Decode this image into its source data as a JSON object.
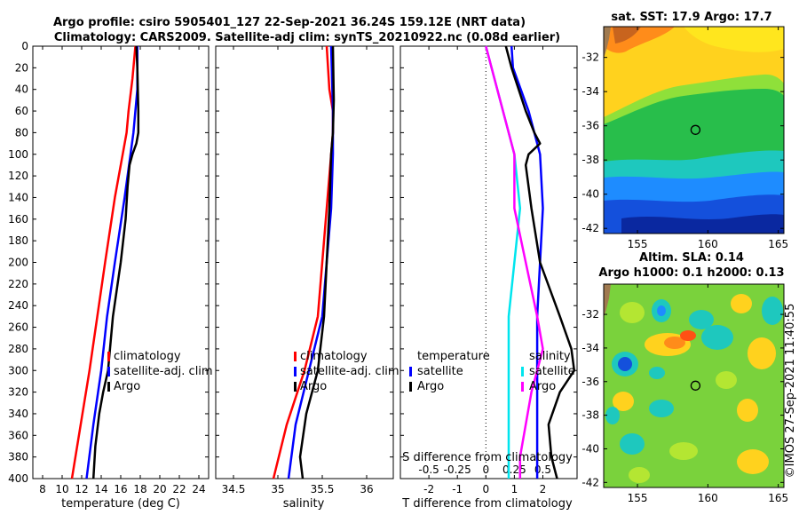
{
  "title_line1": "Argo profile: csiro 5905401_127 22-Sep-2021 36.24S 159.12E (NRT data)",
  "title_line2": "Climatology: CARS2009. Satellite-adj clim: synTS_20210922.nc (0.08d earlier)",
  "watermark": "©IMOS 27-Sep-2021 11:40:55",
  "colors": {
    "climatology": "#ff0000",
    "satellite": "#0000ff",
    "argo": "#000000",
    "cyan": "#00e5ee",
    "magenta": "#ff00ff"
  },
  "chart_data": [
    {
      "type": "line",
      "id": "temperature",
      "xlabel": "temperature (deg C)",
      "ylim": [
        0,
        400
      ],
      "xlim": [
        7,
        25
      ],
      "xticks": [
        8,
        10,
        12,
        14,
        16,
        18,
        20,
        22,
        24
      ],
      "yticks": [
        0,
        20,
        40,
        60,
        80,
        100,
        120,
        140,
        160,
        180,
        200,
        220,
        240,
        260,
        280,
        300,
        320,
        340,
        360,
        380,
        400
      ],
      "legend": [
        "climatology",
        "satellite-adj. clim",
        "Argo"
      ],
      "series": [
        {
          "name": "climatology",
          "color": "#ff0000",
          "depth": [
            0,
            10,
            30,
            60,
            80,
            100,
            140,
            200,
            250,
            300,
            350,
            400
          ],
          "values": [
            17.5,
            17.4,
            17.2,
            16.8,
            16.6,
            16.2,
            15.4,
            14.4,
            13.6,
            12.8,
            11.9,
            11.0
          ]
        },
        {
          "name": "satellite-adj. clim",
          "color": "#0000ff",
          "depth": [
            0,
            10,
            40,
            60,
            80,
            100,
            140,
            200,
            250,
            300,
            350,
            400
          ],
          "values": [
            17.7,
            17.7,
            17.7,
            17.5,
            17.3,
            17.0,
            16.4,
            15.4,
            14.6,
            14.0,
            13.2,
            12.5
          ]
        },
        {
          "name": "Argo",
          "color": "#000000",
          "depth": [
            0,
            20,
            60,
            80,
            90,
            100,
            110,
            130,
            160,
            200,
            250,
            300,
            320,
            340,
            370,
            400
          ],
          "values": [
            17.6,
            17.7,
            17.8,
            17.8,
            17.6,
            17.2,
            16.9,
            16.7,
            16.5,
            16.0,
            15.2,
            14.7,
            14.2,
            13.8,
            13.4,
            13.2
          ]
        }
      ]
    },
    {
      "type": "line",
      "id": "salinity",
      "xlabel": "salinity",
      "ylim": [
        0,
        400
      ],
      "xlim": [
        34.3,
        36.3
      ],
      "xticks": [
        "34.5",
        "35",
        "35.5",
        "36"
      ],
      "legend": [
        "climatology",
        "satellite-adj. clim",
        "Argo"
      ],
      "series": [
        {
          "name": "climatology",
          "color": "#ff0000",
          "depth": [
            0,
            40,
            60,
            80,
            100,
            150,
            200,
            250,
            300,
            350,
            400
          ],
          "values": [
            35.55,
            35.58,
            35.62,
            35.62,
            35.6,
            35.55,
            35.5,
            35.45,
            35.3,
            35.1,
            34.95
          ]
        },
        {
          "name": "satellite-adj. clim",
          "color": "#0000ff",
          "depth": [
            0,
            60,
            100,
            150,
            200,
            250,
            300,
            350,
            400
          ],
          "values": [
            35.6,
            35.62,
            35.62,
            35.6,
            35.55,
            35.5,
            35.35,
            35.2,
            35.12
          ]
        },
        {
          "name": "Argo",
          "color": "#000000",
          "depth": [
            0,
            50,
            80,
            100,
            150,
            200,
            250,
            300,
            340,
            380,
            400
          ],
          "values": [
            35.62,
            35.63,
            35.62,
            35.6,
            35.58,
            35.55,
            35.52,
            35.45,
            35.32,
            35.25,
            35.28
          ]
        }
      ]
    },
    {
      "type": "line",
      "id": "difference",
      "xlabel": "T difference from climatology",
      "ylim": [
        0,
        400
      ],
      "xlim": [
        -3,
        3.2
      ],
      "xticks": [
        "-2",
        "-1",
        "0",
        "1",
        "2"
      ],
      "top_axis_label": "S difference from climatology",
      "top_ticks": [
        "-0.5",
        "-0.25",
        "0",
        "0.25",
        "0.5"
      ],
      "legend_left": [
        "temperature",
        "satellite",
        "Argo"
      ],
      "legend_right": [
        "salinity",
        "satellite",
        "Argo"
      ],
      "series": [
        {
          "name": "T satellite",
          "color": "#0000ff",
          "depth": [
            0,
            20,
            60,
            80,
            100,
            150,
            200,
            250,
            300,
            350,
            400
          ],
          "values": [
            0.9,
            0.95,
            1.5,
            1.7,
            1.9,
            2.0,
            1.9,
            1.8,
            1.8,
            1.8,
            1.8
          ]
        },
        {
          "name": "T Argo",
          "color": "#000000",
          "depth": [
            0,
            20,
            60,
            80,
            90,
            100,
            110,
            150,
            200,
            250,
            280,
            300,
            320,
            350,
            380,
            400
          ],
          "values": [
            0.7,
            0.9,
            1.4,
            1.7,
            1.9,
            1.5,
            1.4,
            1.6,
            1.9,
            2.6,
            3.0,
            3.1,
            2.6,
            2.2,
            2.3,
            2.5
          ]
        },
        {
          "name": "S satellite",
          "color": "#00e5ee",
          "depth": [
            0,
            20,
            80,
            100,
            150,
            200,
            250,
            300,
            350,
            400
          ],
          "values": [
            0,
            0.05,
            0.2,
            0.25,
            0.3,
            0.25,
            0.2,
            0.2,
            0.2,
            0.2
          ]
        },
        {
          "name": "S Argo",
          "color": "#ff00ff",
          "depth": [
            0,
            20,
            80,
            100,
            150,
            200,
            250,
            280,
            300,
            320,
            350,
            380,
            400
          ],
          "values": [
            0,
            0.05,
            0.2,
            0.25,
            0.25,
            0.35,
            0.45,
            0.5,
            0.45,
            0.4,
            0.35,
            0.3,
            0.3
          ]
        }
      ]
    },
    {
      "type": "heatmap",
      "id": "sst_map",
      "title": "sat. SST: 17.9 Argo: 17.7",
      "xticks": [
        "155",
        "160",
        "165"
      ],
      "yticks": [
        "-32",
        "-34",
        "-36",
        "-38",
        "-40",
        "-42"
      ],
      "xlim": [
        152.6,
        165.4
      ],
      "ylim": [
        -42.3,
        -30.2
      ],
      "argo_position": {
        "lon": 159.12,
        "lat": -36.24
      }
    },
    {
      "type": "heatmap",
      "id": "sla_map",
      "title_line1": "Altim. SLA: 0.14",
      "title_line2": "Argo h1000: 0.1 h2000: 0.13",
      "xticks": [
        "155",
        "160",
        "165"
      ],
      "yticks": [
        "-32",
        "-34",
        "-36",
        "-38",
        "-40",
        "-42"
      ],
      "xlim": [
        152.6,
        165.4
      ],
      "ylim": [
        -42.3,
        -30.2
      ],
      "argo_position": {
        "lon": 159.12,
        "lat": -36.24
      }
    }
  ]
}
